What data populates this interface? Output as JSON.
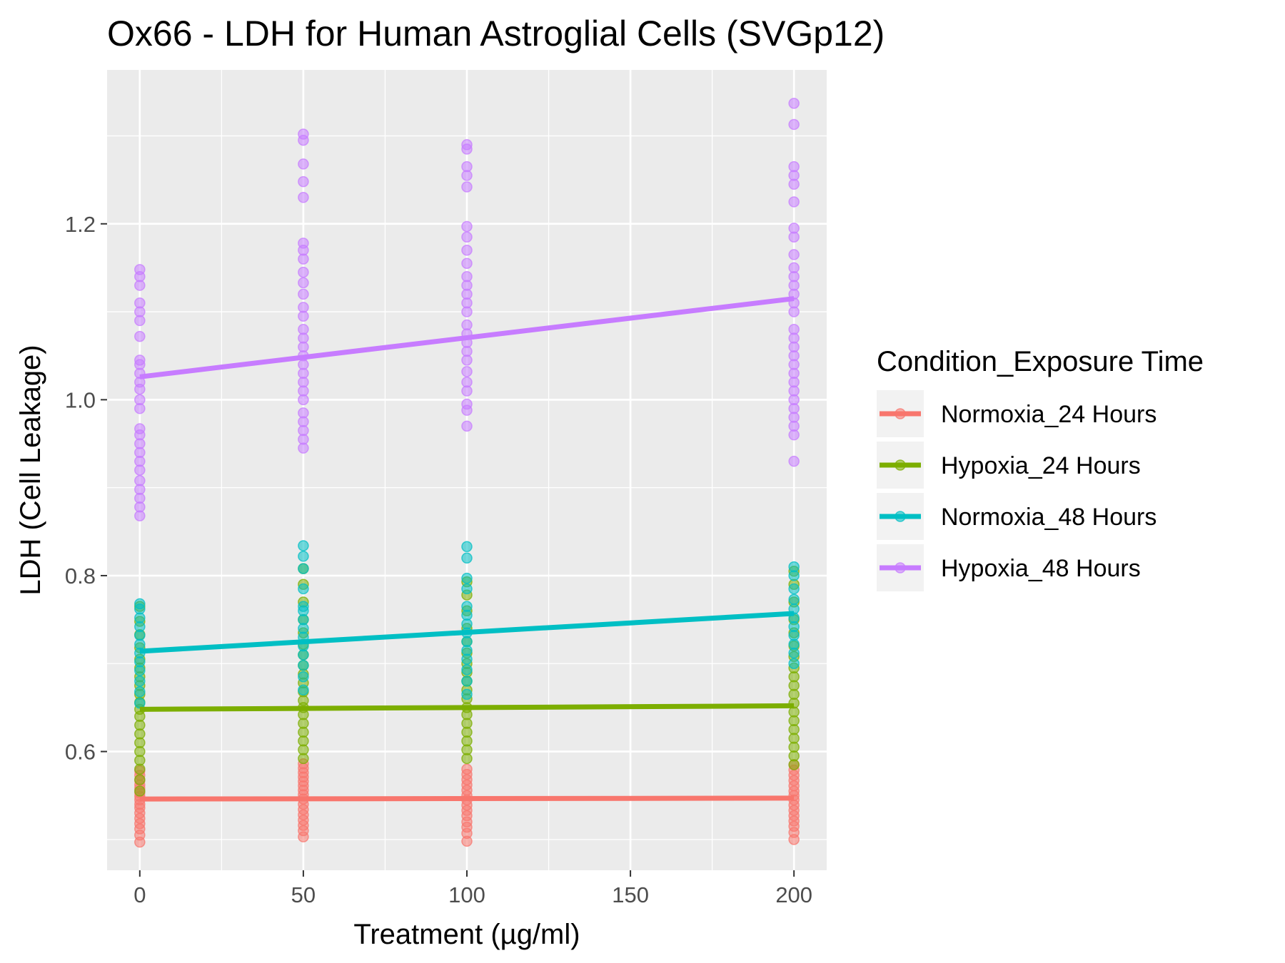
{
  "chart_data": {
    "type": "scatter",
    "title": "Ox66 - LDH for Human Astroglial Cells (SVGp12)",
    "xlabel": "Treatment (µg/ml)",
    "ylabel": "LDH (Cell Leakage)",
    "xlim": [
      -10,
      210
    ],
    "ylim": [
      0.465,
      1.375
    ],
    "x_ticks": [
      0,
      50,
      100,
      150,
      200
    ],
    "x_tick_labels": [
      "0",
      "50",
      "100",
      "150",
      "200"
    ],
    "y_ticks": [
      0.6,
      0.8,
      1.0,
      1.2
    ],
    "y_tick_labels": [
      "0.6",
      "0.8",
      "1.0",
      "1.2"
    ],
    "grid": true,
    "legend": {
      "title": "Condition_Exposure Time",
      "position": "right"
    },
    "series": [
      {
        "name": "Normoxia_24 Hours",
        "color": "#F8766D",
        "trend": {
          "x": [
            0,
            200
          ],
          "y": [
            0.546,
            0.547
          ]
        },
        "points": [
          {
            "x": 0,
            "y": [
              0.497,
              0.505,
              0.512,
              0.518,
              0.524,
              0.53,
              0.536,
              0.54,
              0.545,
              0.549,
              0.553,
              0.558,
              0.562,
              0.567,
              0.573,
              0.578
            ]
          },
          {
            "x": 50,
            "y": [
              0.503,
              0.51,
              0.516,
              0.522,
              0.528,
              0.534,
              0.54,
              0.546,
              0.551,
              0.556,
              0.561,
              0.566,
              0.571,
              0.576,
              0.581,
              0.586
            ]
          },
          {
            "x": 100,
            "y": [
              0.498,
              0.507,
              0.514,
              0.52,
              0.527,
              0.533,
              0.539,
              0.545,
              0.55,
              0.556,
              0.562,
              0.568,
              0.574,
              0.58
            ]
          },
          {
            "x": 200,
            "y": [
              0.5,
              0.508,
              0.515,
              0.521,
              0.527,
              0.533,
              0.539,
              0.545,
              0.55,
              0.555,
              0.561,
              0.567,
              0.573,
              0.579,
              0.585
            ]
          }
        ]
      },
      {
        "name": "Hypoxia_24 Hours",
        "color": "#7CAE00",
        "trend": {
          "x": [
            0,
            200
          ],
          "y": [
            0.648,
            0.652
          ]
        },
        "points": [
          {
            "x": 0,
            "y": [
              0.555,
              0.568,
              0.58,
              0.59,
              0.6,
              0.61,
              0.62,
              0.63,
              0.64,
              0.648,
              0.656,
              0.665,
              0.675,
              0.685,
              0.695,
              0.705,
              0.718,
              0.733,
              0.748,
              0.765
            ]
          },
          {
            "x": 50,
            "y": [
              0.592,
              0.602,
              0.612,
              0.622,
              0.632,
              0.642,
              0.65,
              0.658,
              0.668,
              0.678,
              0.688,
              0.698,
              0.71,
              0.722,
              0.735,
              0.75,
              0.77,
              0.79,
              0.808
            ]
          },
          {
            "x": 100,
            "y": [
              0.592,
              0.602,
              0.612,
              0.622,
              0.632,
              0.642,
              0.65,
              0.66,
              0.67,
              0.68,
              0.69,
              0.7,
              0.712,
              0.725,
              0.74,
              0.76,
              0.778,
              0.793
            ]
          },
          {
            "x": 200,
            "y": [
              0.585,
              0.595,
              0.605,
              0.615,
              0.625,
              0.635,
              0.645,
              0.655,
              0.665,
              0.675,
              0.685,
              0.695,
              0.708,
              0.72,
              0.735,
              0.75,
              0.77,
              0.79,
              0.805
            ]
          }
        ]
      },
      {
        "name": "Normoxia_48 Hours",
        "color": "#00BFC4",
        "trend": {
          "x": [
            0,
            200
          ],
          "y": [
            0.714,
            0.757
          ]
        },
        "points": [
          {
            "x": 0,
            "y": [
              0.655,
              0.668,
              0.68,
              0.692,
              0.702,
              0.712,
              0.722,
              0.732,
              0.742,
              0.752,
              0.762,
              0.768
            ]
          },
          {
            "x": 50,
            "y": [
              0.67,
              0.685,
              0.698,
              0.71,
              0.72,
              0.73,
              0.74,
              0.75,
              0.76,
              0.765,
              0.785,
              0.808,
              0.822,
              0.834
            ]
          },
          {
            "x": 100,
            "y": [
              0.665,
              0.68,
              0.693,
              0.705,
              0.715,
              0.725,
              0.735,
              0.745,
              0.755,
              0.765,
              0.785,
              0.797,
              0.82,
              0.833
            ]
          },
          {
            "x": 200,
            "y": [
              0.7,
              0.712,
              0.722,
              0.732,
              0.742,
              0.752,
              0.762,
              0.773,
              0.785,
              0.8,
              0.81
            ]
          }
        ]
      },
      {
        "name": "Hypoxia_48 Hours",
        "color": "#C77CFF",
        "trend": {
          "x": [
            0,
            200
          ],
          "y": [
            1.026,
            1.115
          ]
        },
        "points": [
          {
            "x": 0,
            "y": [
              0.868,
              0.878,
              0.888,
              0.898,
              0.908,
              0.92,
              0.93,
              0.94,
              0.95,
              0.96,
              0.967,
              0.99,
              1.0,
              1.012,
              1.02,
              1.03,
              1.04,
              1.045,
              1.072,
              1.09,
              1.1,
              1.11,
              1.13,
              1.14,
              1.148
            ]
          },
          {
            "x": 50,
            "y": [
              0.945,
              0.955,
              0.965,
              0.975,
              0.985,
              1.0,
              1.01,
              1.02,
              1.03,
              1.04,
              1.05,
              1.06,
              1.07,
              1.08,
              1.095,
              1.105,
              1.12,
              1.133,
              1.145,
              1.16,
              1.17,
              1.178,
              1.23,
              1.248,
              1.268,
              1.295,
              1.302
            ]
          },
          {
            "x": 100,
            "y": [
              0.97,
              0.988,
              0.995,
              1.01,
              1.02,
              1.032,
              1.045,
              1.055,
              1.065,
              1.075,
              1.085,
              1.1,
              1.11,
              1.12,
              1.13,
              1.14,
              1.155,
              1.17,
              1.185,
              1.197,
              1.242,
              1.255,
              1.265,
              1.285,
              1.29
            ]
          },
          {
            "x": 200,
            "y": [
              0.93,
              0.96,
              0.97,
              0.98,
              0.99,
              1.0,
              1.01,
              1.02,
              1.03,
              1.04,
              1.05,
              1.06,
              1.07,
              1.08,
              1.1,
              1.11,
              1.12,
              1.13,
              1.14,
              1.15,
              1.165,
              1.185,
              1.195,
              1.225,
              1.245,
              1.255,
              1.265,
              1.313,
              1.337
            ]
          }
        ]
      }
    ]
  }
}
